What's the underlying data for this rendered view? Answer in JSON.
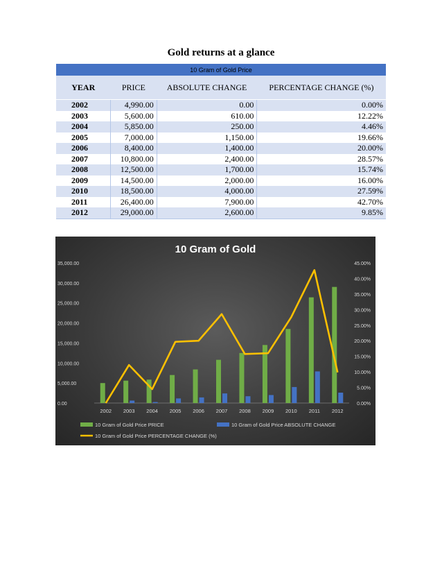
{
  "document": {
    "title": "Gold returns at a glance"
  },
  "table": {
    "band_title": "10 Gram of Gold Price",
    "headers": [
      "YEAR",
      "PRICE",
      "ABSOLUTE CHANGE",
      "PERCENTAGE CHANGE (%)"
    ],
    "rows": [
      [
        "2002",
        "4,990.00",
        "0.00",
        "0.00%"
      ],
      [
        "2003",
        "5,600.00",
        "610.00",
        "12.22%"
      ],
      [
        "2004",
        "5,850.00",
        "250.00",
        "4.46%"
      ],
      [
        "2005",
        "7,000.00",
        "1,150.00",
        "19.66%"
      ],
      [
        "2006",
        "8,400.00",
        "1,400.00",
        "20.00%"
      ],
      [
        "2007",
        "10,800.00",
        "2,400.00",
        "28.57%"
      ],
      [
        "2008",
        "12,500.00",
        "1,700.00",
        "15.74%"
      ],
      [
        "2009",
        "14,500.00",
        "2,000.00",
        "16.00%"
      ],
      [
        "2010",
        "18,500.00",
        "4,000.00",
        "27.59%"
      ],
      [
        "2011",
        "26,400.00",
        "7,900.00",
        "42.70%"
      ],
      [
        "2012",
        "29,000.00",
        "2,600.00",
        "9.85%"
      ]
    ]
  },
  "chart_data": {
    "type": "bar",
    "title": "10 Gram of Gold",
    "categories": [
      "2002",
      "2003",
      "2004",
      "2005",
      "2006",
      "2007",
      "2008",
      "2009",
      "2010",
      "2011",
      "2012"
    ],
    "series": [
      {
        "name": "10 Gram of Gold Price PRICE",
        "type": "bar",
        "axis": "left",
        "color": "#70ad47",
        "values": [
          4990,
          5600,
          5850,
          7000,
          8400,
          10800,
          12500,
          14500,
          18500,
          26400,
          29000
        ]
      },
      {
        "name": "10 Gram of Gold Price ABSOLUTE CHANGE",
        "type": "bar",
        "axis": "left",
        "color": "#4472c4",
        "values": [
          0,
          610,
          250,
          1150,
          1400,
          2400,
          1700,
          2000,
          4000,
          7900,
          2600
        ]
      },
      {
        "name": "10 Gram of Gold Price PERCENTAGE CHANGE (%)",
        "type": "line",
        "axis": "right",
        "color": "#ffc000",
        "values": [
          0.0,
          12.22,
          4.46,
          19.66,
          20.0,
          28.57,
          15.74,
          16.0,
          27.59,
          42.7,
          9.85
        ]
      }
    ],
    "ylim_left": [
      0,
      35000
    ],
    "yticks_left": [
      "0.00",
      "5,000.00",
      "10,000.00",
      "15,000.00",
      "20,000.00",
      "25,000.00",
      "30,000.00",
      "35,000.00"
    ],
    "ylim_right": [
      0,
      45
    ],
    "yticks_right": [
      "0.00%",
      "5.00%",
      "10.00%",
      "15.00%",
      "20.00%",
      "25.00%",
      "30.00%",
      "35.00%",
      "40.00%",
      "45.00%"
    ],
    "grid": false,
    "legend_position": "bottom"
  }
}
